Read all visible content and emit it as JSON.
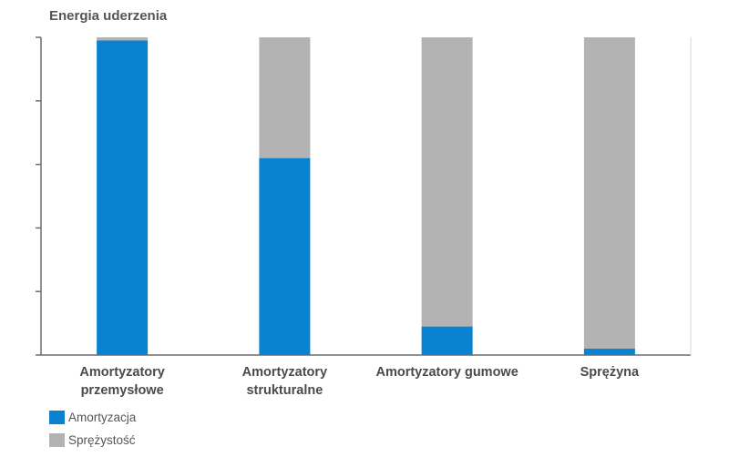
{
  "chart_data": {
    "type": "bar",
    "stacked": true,
    "normalized": true,
    "title": "Energia uderzenia",
    "xlabel": "",
    "ylabel": "",
    "ylim": [
      0,
      100
    ],
    "y_tick_labels": false,
    "categories": [
      [
        "Amortyzatory",
        "przemysłowe"
      ],
      [
        "Amortyzatory",
        "strukturalne"
      ],
      [
        "Amortyzatory gumowe"
      ],
      [
        "Sprężyna"
      ]
    ],
    "series": [
      {
        "name": "Amortyzacja",
        "color": "#0a82cf",
        "values": [
          99,
          62,
          9,
          2
        ]
      },
      {
        "name": "Sprężystość",
        "color": "#b3b3b3",
        "values": [
          1,
          38,
          91,
          98
        ]
      }
    ],
    "legend_position": "bottom-left",
    "grid": false
  }
}
